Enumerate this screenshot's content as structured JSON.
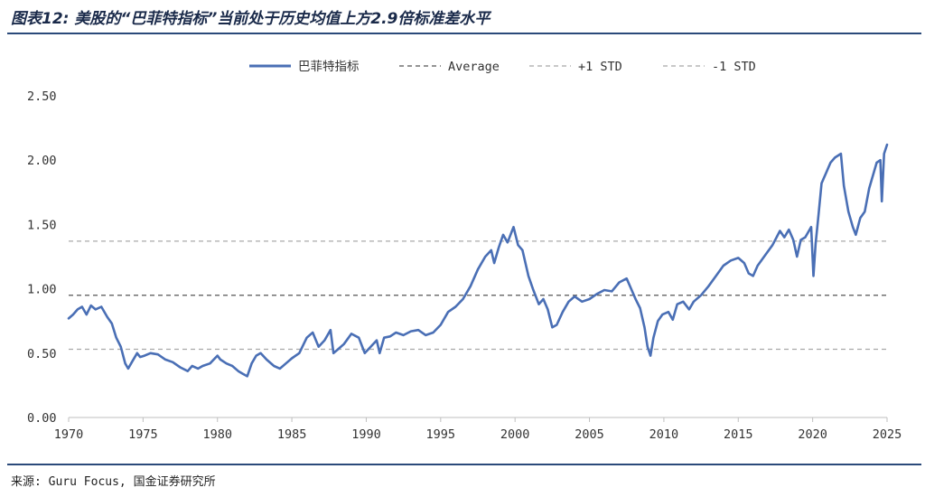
{
  "figure": {
    "title": "图表12: 美股的“巴菲特指标”当前处于历史均值上方2.9倍标准差水平",
    "source": "来源: Guru Focus, 国金证券研究所"
  },
  "colors": {
    "series": "#4a6fb5",
    "average": "#555555",
    "std": "#a8a8a8",
    "rule": "#2b4a7a"
  },
  "chart_data": {
    "type": "line",
    "title": "",
    "xlabel": "",
    "ylabel": "",
    "xlim": [
      1970,
      2025
    ],
    "ylim": [
      0,
      2.5
    ],
    "x_ticks": [
      1970,
      1975,
      1980,
      1985,
      1990,
      1995,
      2000,
      2005,
      2010,
      2015,
      2020,
      2025
    ],
    "x_tick_labels": [
      "1970",
      "1975",
      "1980",
      "1985",
      "1990",
      "1995",
      "2000",
      "2005",
      "2010",
      "2015",
      "2020",
      "2025"
    ],
    "y_ticks": [
      0,
      0.5,
      1.0,
      1.5,
      2.0,
      2.5
    ],
    "y_tick_labels": [
      "0.00",
      "0.50",
      "1.00",
      "1.50",
      "2.00",
      "2.50"
    ],
    "grid": false,
    "legend_position": "top",
    "series": [
      {
        "name": "巴菲特指标",
        "style": "solid",
        "x": [
          1970.0,
          1970.3,
          1970.6,
          1970.9,
          1971.2,
          1971.5,
          1971.8,
          1972.2,
          1972.6,
          1972.9,
          1973.2,
          1973.5,
          1973.8,
          1974.0,
          1974.3,
          1974.6,
          1974.8,
          1975.1,
          1975.5,
          1976.0,
          1976.5,
          1977.0,
          1977.5,
          1978.0,
          1978.3,
          1978.7,
          1979.0,
          1979.5,
          1980.0,
          1980.2,
          1980.6,
          1981.0,
          1981.4,
          1981.7,
          1982.0,
          1982.3,
          1982.6,
          1982.9,
          1983.3,
          1983.8,
          1984.2,
          1984.6,
          1985.0,
          1985.5,
          1986.0,
          1986.4,
          1986.8,
          1987.2,
          1987.6,
          1987.8,
          1988.0,
          1988.5,
          1989.0,
          1989.5,
          1989.9,
          1990.3,
          1990.7,
          1990.9,
          1991.2,
          1991.6,
          1992.0,
          1992.5,
          1993.0,
          1993.5,
          1994.0,
          1994.5,
          1995.0,
          1995.5,
          1996.0,
          1996.5,
          1997.0,
          1997.5,
          1998.0,
          1998.4,
          1998.6,
          1998.9,
          1999.2,
          1999.5,
          1999.9,
          2000.2,
          2000.5,
          2000.9,
          2001.2,
          2001.6,
          2001.9,
          2002.2,
          2002.5,
          2002.8,
          2003.2,
          2003.6,
          2004.0,
          2004.5,
          2005.0,
          2005.5,
          2006.0,
          2006.5,
          2007.0,
          2007.5,
          2007.8,
          2008.1,
          2008.4,
          2008.7,
          2008.9,
          2009.1,
          2009.3,
          2009.6,
          2009.9,
          2010.3,
          2010.6,
          2010.9,
          2011.3,
          2011.7,
          2012.0,
          2012.5,
          2013.0,
          2013.5,
          2014.0,
          2014.5,
          2015.0,
          2015.4,
          2015.7,
          2016.0,
          2016.3,
          2016.8,
          2017.3,
          2017.8,
          2018.1,
          2018.4,
          2018.7,
          2018.95,
          2019.2,
          2019.5,
          2019.9,
          2020.05,
          2020.2,
          2020.4,
          2020.6,
          2020.9,
          2021.2,
          2021.5,
          2021.9,
          2022.1,
          2022.4,
          2022.7,
          2022.9,
          2023.2,
          2023.5,
          2023.8,
          2024.0,
          2024.3,
          2024.55,
          2024.65,
          2024.8,
          2025.0
        ],
        "values": [
          0.77,
          0.8,
          0.84,
          0.86,
          0.8,
          0.87,
          0.84,
          0.86,
          0.78,
          0.73,
          0.62,
          0.55,
          0.42,
          0.38,
          0.44,
          0.5,
          0.47,
          0.48,
          0.5,
          0.49,
          0.45,
          0.43,
          0.39,
          0.36,
          0.4,
          0.38,
          0.4,
          0.42,
          0.48,
          0.45,
          0.42,
          0.4,
          0.36,
          0.34,
          0.32,
          0.42,
          0.48,
          0.5,
          0.45,
          0.4,
          0.38,
          0.42,
          0.46,
          0.5,
          0.62,
          0.66,
          0.55,
          0.6,
          0.68,
          0.5,
          0.52,
          0.57,
          0.65,
          0.62,
          0.5,
          0.55,
          0.6,
          0.5,
          0.62,
          0.63,
          0.66,
          0.64,
          0.67,
          0.68,
          0.64,
          0.66,
          0.72,
          0.82,
          0.86,
          0.92,
          1.02,
          1.15,
          1.25,
          1.3,
          1.2,
          1.32,
          1.42,
          1.36,
          1.48,
          1.34,
          1.3,
          1.1,
          1.0,
          0.88,
          0.92,
          0.84,
          0.7,
          0.72,
          0.82,
          0.9,
          0.94,
          0.9,
          0.92,
          0.96,
          0.99,
          0.98,
          1.05,
          1.08,
          1.0,
          0.92,
          0.85,
          0.7,
          0.55,
          0.48,
          0.62,
          0.75,
          0.8,
          0.82,
          0.76,
          0.88,
          0.9,
          0.84,
          0.9,
          0.95,
          1.02,
          1.1,
          1.18,
          1.22,
          1.24,
          1.2,
          1.12,
          1.1,
          1.18,
          1.26,
          1.34,
          1.45,
          1.4,
          1.46,
          1.38,
          1.25,
          1.38,
          1.4,
          1.48,
          1.1,
          1.35,
          1.58,
          1.82,
          1.9,
          1.98,
          2.02,
          2.05,
          1.8,
          1.6,
          1.48,
          1.42,
          1.55,
          1.6,
          1.78,
          1.86,
          1.98,
          2.0,
          1.68,
          2.05,
          2.12
        ],
        "color": "#4a6fb5"
      },
      {
        "name": "Average",
        "style": "dashed",
        "values": [
          0.95
        ],
        "color": "#555555"
      },
      {
        "name": "+1 STD",
        "style": "dashed",
        "values": [
          1.37
        ],
        "color": "#a8a8a8"
      },
      {
        "name": "-1 STD",
        "style": "dashed",
        "values": [
          0.53
        ],
        "color": "#a8a8a8"
      }
    ]
  }
}
